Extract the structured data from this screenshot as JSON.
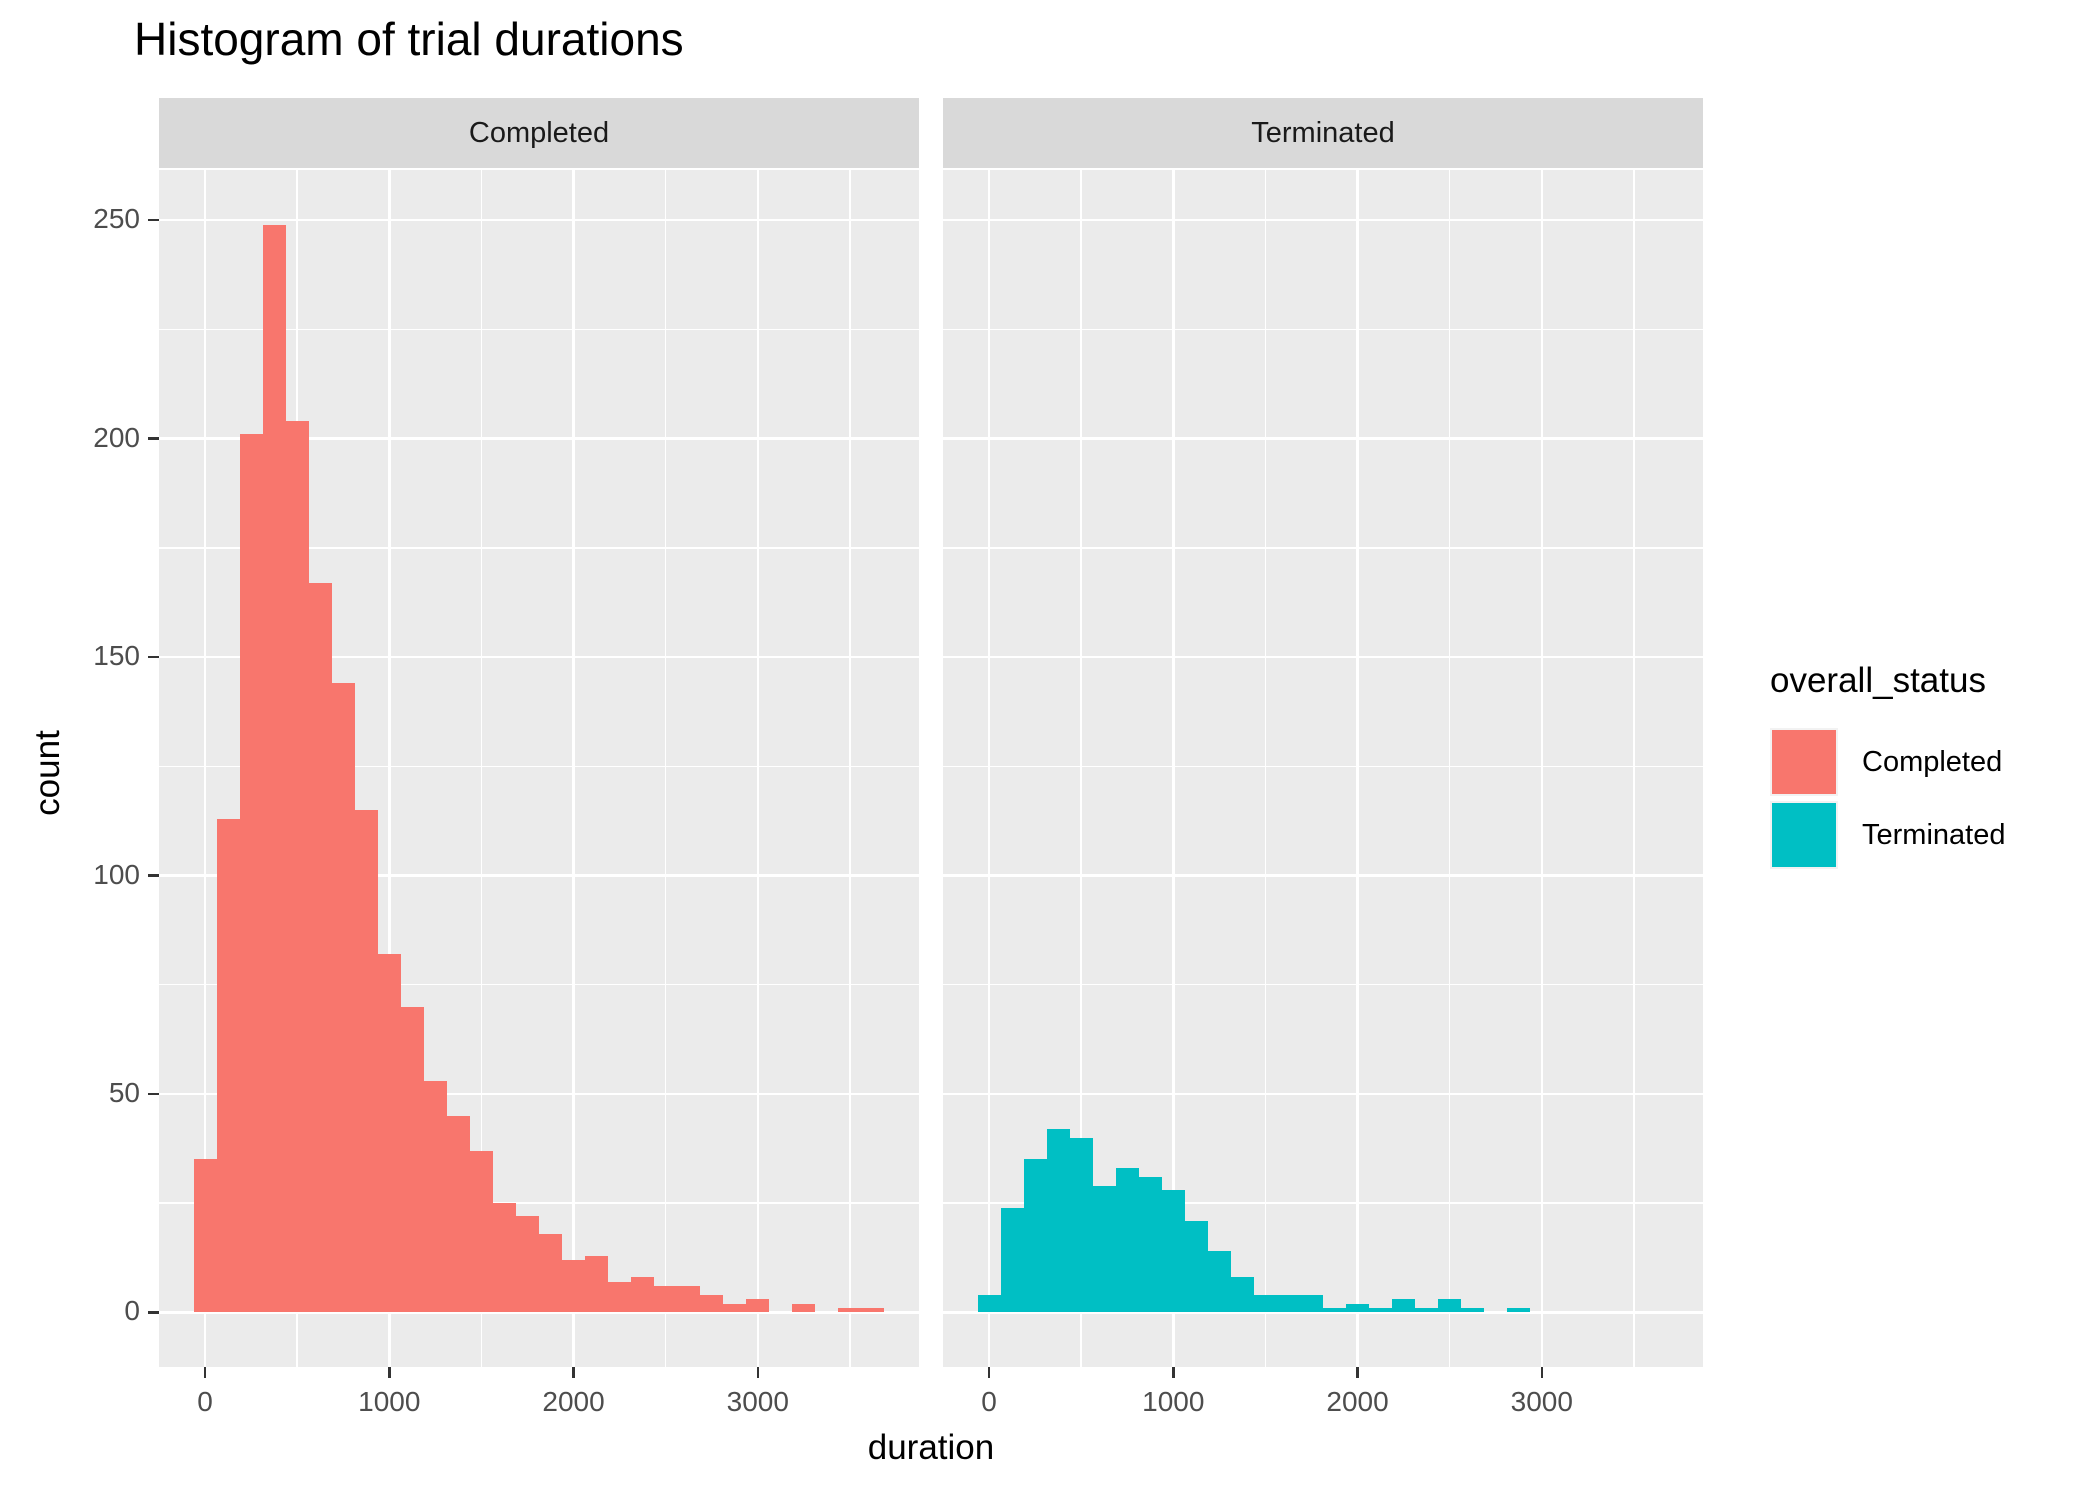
{
  "title": "Histogram of trial durations",
  "axes": {
    "x_title": "duration",
    "y_title": "count",
    "x_tick_labels": [
      "0",
      "1000",
      "2000",
      "3000"
    ],
    "x_tick_values": [
      0,
      1000,
      2000,
      3000
    ],
    "x_minor_values": [
      500,
      1500,
      2500,
      3500
    ],
    "y_tick_labels": [
      "0",
      "50",
      "100",
      "150",
      "200",
      "250"
    ],
    "y_tick_values": [
      0,
      50,
      100,
      150,
      200,
      250
    ],
    "y_minor_values": [
      25,
      75,
      125,
      175,
      225
    ]
  },
  "facets": [
    {
      "label": "Completed"
    },
    {
      "label": "Terminated"
    }
  ],
  "legend": {
    "title": "overall_status",
    "entries": [
      {
        "label": "Completed",
        "color": "#F8766D"
      },
      {
        "label": "Terminated",
        "color": "#00BFC4"
      }
    ]
  },
  "colors": {
    "completed": "#F8766D",
    "terminated": "#00BFC4",
    "panel_bg": "#EBEBEB",
    "strip_bg": "#D9D9D9",
    "grid": "#FFFFFF",
    "axis_text": "#4D4D4D",
    "strip_text": "#1A1A1A",
    "tick_mark": "#333333",
    "legend_key_bg": "#F2F2F2",
    "title_text": "#000000"
  },
  "chart_data": {
    "type": "bar",
    "subtype": "faceted-histogram",
    "title": "Histogram of trial durations",
    "xlabel": "duration",
    "ylabel": "count",
    "facet_variable": "overall_status",
    "legend_position": "right",
    "grid": true,
    "binwidth": 125,
    "x_domain": [
      -250,
      3875
    ],
    "y_domain": [
      -12.5,
      261.5
    ],
    "bin_centers": [
      0,
      125,
      250,
      375,
      500,
      625,
      750,
      875,
      1000,
      1125,
      1250,
      1375,
      1500,
      1625,
      1750,
      1875,
      2000,
      2125,
      2250,
      2375,
      2500,
      2625,
      2750,
      2875,
      3000,
      3125,
      3250,
      3375,
      3500,
      3625
    ],
    "series": [
      {
        "name": "Completed",
        "color": "#F8766D",
        "values": [
          35,
          113,
          201,
          249,
          204,
          167,
          144,
          115,
          82,
          70,
          53,
          45,
          37,
          25,
          22,
          18,
          12,
          13,
          7,
          8,
          6,
          6,
          4,
          2,
          3,
          0,
          2,
          0,
          1,
          1
        ]
      },
      {
        "name": "Terminated",
        "color": "#00BFC4",
        "values": [
          4,
          24,
          35,
          42,
          40,
          29,
          33,
          31,
          28,
          21,
          14,
          8,
          4,
          4,
          4,
          1,
          2,
          1,
          3,
          1,
          3,
          1,
          0,
          1,
          0,
          0,
          0,
          0,
          0,
          0
        ]
      }
    ]
  }
}
